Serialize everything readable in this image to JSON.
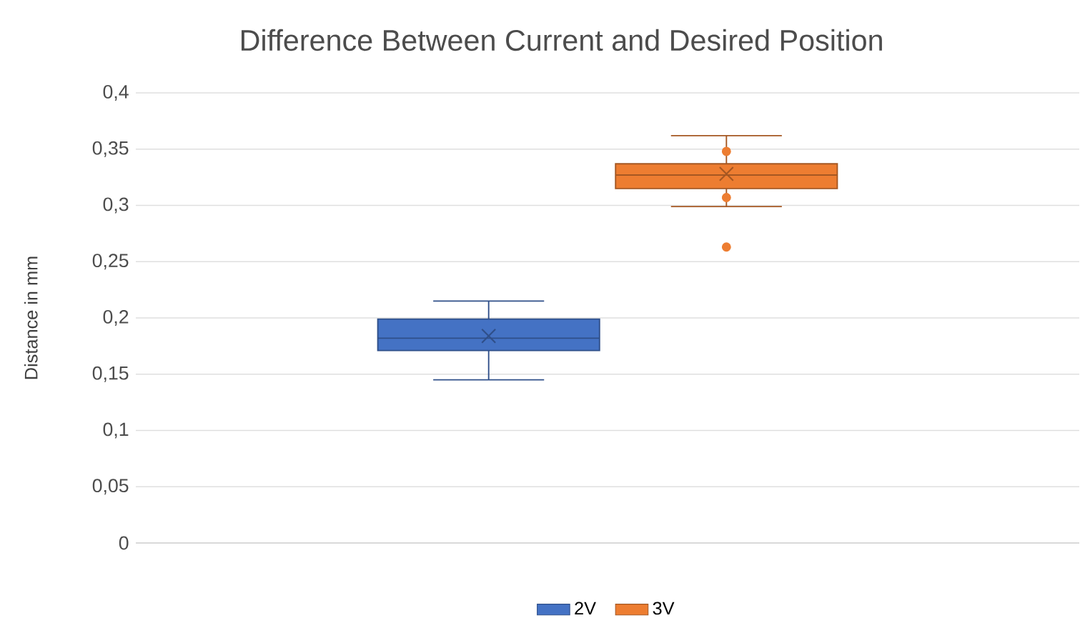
{
  "chart_data": {
    "type": "box",
    "title": "Difference Between Current and Desired Position",
    "ylabel": "Distance in mm",
    "categories": [
      null
    ],
    "series": [
      {
        "name": "2V",
        "color": "#4472c4",
        "boxes": [
          {
            "low": 0.145,
            "q1": 0.171,
            "median": 0.182,
            "q3": 0.199,
            "high": 0.215,
            "mean": 0.184
          }
        ]
      },
      {
        "name": "3V",
        "color": "#ed7d31",
        "boxes": [
          {
            "low": 0.299,
            "q1": 0.315,
            "median": 0.327,
            "q3": 0.337,
            "high": 0.362,
            "mean": 0.328,
            "outliers": [
              0.263,
              0.307,
              0.348
            ]
          }
        ]
      }
    ],
    "ylim": [
      0,
      0.4
    ],
    "yticks": [
      {
        "value": 0,
        "label": "0"
      },
      {
        "value": 0.05,
        "label": "0,05"
      },
      {
        "value": 0.1,
        "label": "0,1"
      },
      {
        "value": 0.15,
        "label": "0,15"
      },
      {
        "value": 0.2,
        "label": "0,2"
      },
      {
        "value": 0.25,
        "label": "0,25"
      },
      {
        "value": 0.3,
        "label": "0,3"
      },
      {
        "value": 0.35,
        "label": "0,35"
      },
      {
        "value": 0.4,
        "label": "0,4"
      }
    ],
    "grid": "y",
    "legend": "bottom"
  }
}
